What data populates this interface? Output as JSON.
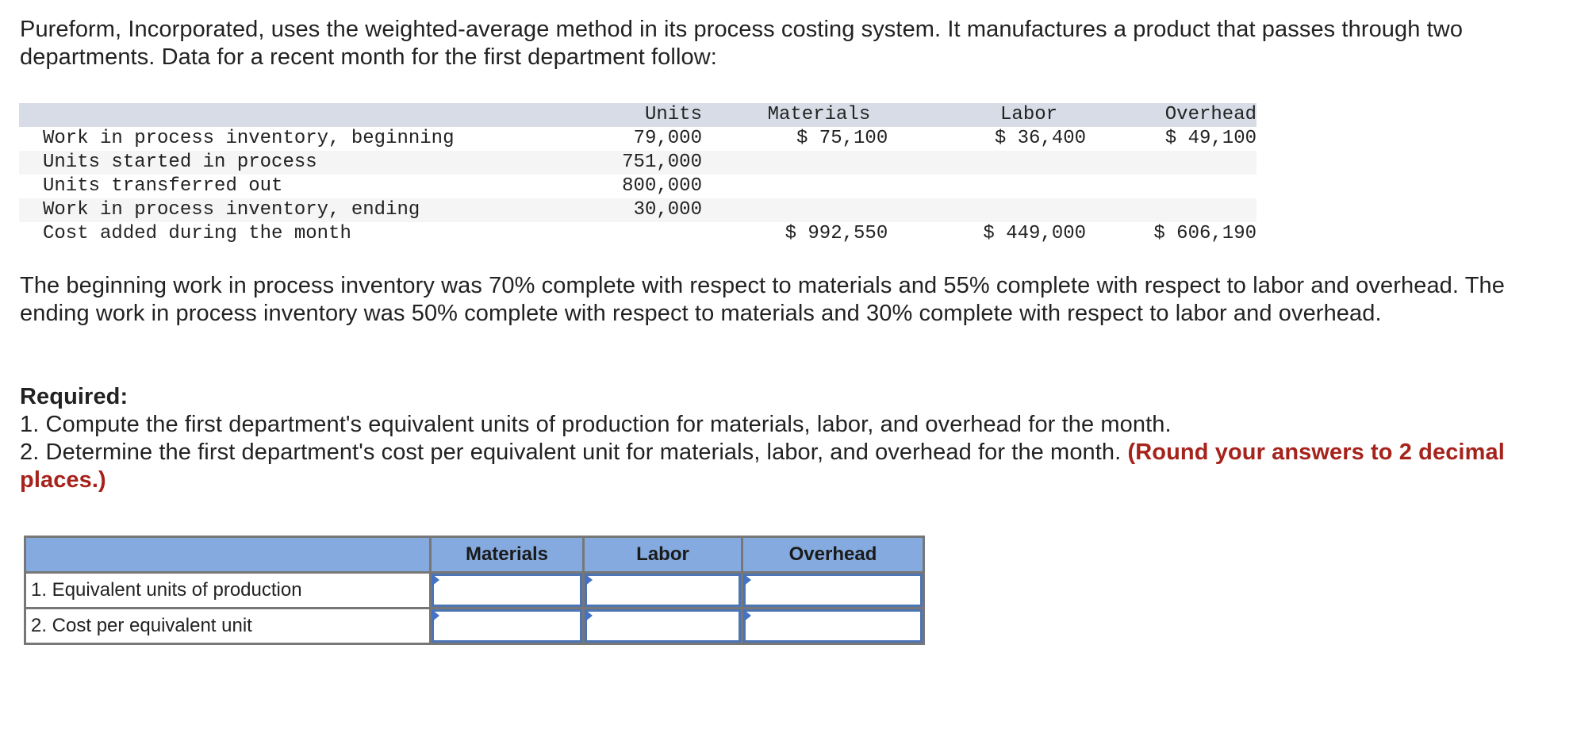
{
  "intro": {
    "text": "Pureform, Incorporated, uses the weighted-average method in its process costing system. It manufactures a product that passes through two departments. Data for a recent month for the first department follow:"
  },
  "data_table": {
    "headers": [
      "",
      "Units",
      "Materials",
      "Labor",
      "Overhead"
    ],
    "rows": [
      {
        "label": "Work in process inventory, beginning",
        "units": "79,000",
        "materials": "$ 75,100",
        "labor": "$ 36,400",
        "overhead": "$ 49,100"
      },
      {
        "label": "Units started in process",
        "units": "751,000",
        "materials": "",
        "labor": "",
        "overhead": ""
      },
      {
        "label": "Units transferred out",
        "units": "800,000",
        "materials": "",
        "labor": "",
        "overhead": ""
      },
      {
        "label": "Work in process inventory, ending",
        "units": "30,000",
        "materials": "",
        "labor": "",
        "overhead": ""
      },
      {
        "label": "Cost added during the month",
        "units": "",
        "materials": "$ 992,550",
        "labor": "$ 449,000",
        "overhead": "$ 606,190"
      }
    ]
  },
  "completion_text": "The beginning work in process inventory was 70% complete with respect to materials and 55% complete with respect to labor and overhead. The ending work in process inventory was 50% complete with respect to materials and 30% complete with respect to labor and overhead.",
  "required": {
    "title": "Required:",
    "item1": "1. Compute the first department's equivalent units of production for materials, labor, and overhead for the month.",
    "item2": "2. Determine the first department's cost per equivalent unit for materials, labor, and overhead for the month.",
    "note": "(Round your answers to 2 decimal places.)",
    "note_color": "#a6231c"
  },
  "answer_table": {
    "headers": [
      "",
      "Materials",
      "Labor",
      "Overhead"
    ],
    "header_color": "#84aadf",
    "input_border_color": "#4d75b4",
    "rows": [
      {
        "label": "1. Equivalent units of production",
        "materials": "",
        "labor": "",
        "overhead": ""
      },
      {
        "label": "2. Cost per equivalent unit",
        "materials": "",
        "labor": "",
        "overhead": ""
      }
    ]
  }
}
